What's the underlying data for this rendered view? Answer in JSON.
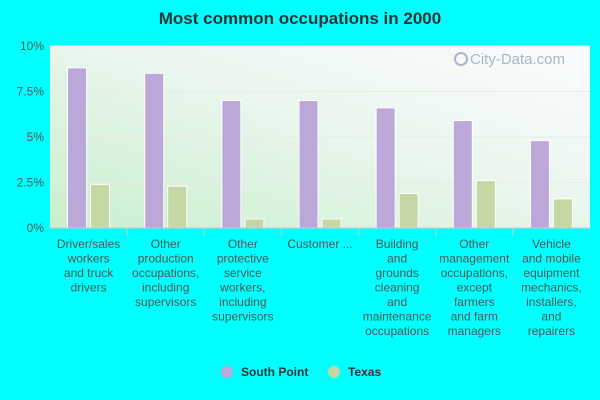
{
  "chart_data": {
    "type": "bar",
    "title": "Most common occupations in 2000",
    "xlabel": "",
    "ylabel": "",
    "ylim": [
      0,
      10
    ],
    "y_ticks": [
      "0%",
      "2.5%",
      "5%",
      "7.5%",
      "10%"
    ],
    "y_tick_values": [
      0,
      2.5,
      5,
      7.5,
      10
    ],
    "categories": [
      [
        "Driver/sales",
        "workers",
        "and truck",
        "drivers"
      ],
      [
        "Other",
        "production",
        "occupations,",
        "including",
        "supervisors"
      ],
      [
        "Other",
        "protective",
        "service",
        "workers,",
        "including",
        "supervisors"
      ],
      [
        "Customer ..."
      ],
      [
        "Building",
        "and",
        "grounds",
        "cleaning",
        "and",
        "maintenance",
        "occupations"
      ],
      [
        "Other",
        "management",
        "occupations,",
        "except",
        "farmers",
        "and farm",
        "managers"
      ],
      [
        "Vehicle",
        "and mobile",
        "equipment",
        "mechanics,",
        "installers,",
        "and",
        "repairers"
      ]
    ],
    "series": [
      {
        "name": "South Point",
        "color": "#bca7d9",
        "values": [
          8.8,
          8.5,
          7.0,
          7.0,
          6.6,
          5.9,
          4.8
        ]
      },
      {
        "name": "Texas",
        "color": "#c5d7a5",
        "values": [
          2.4,
          2.3,
          0.5,
          0.5,
          1.9,
          2.6,
          1.6
        ]
      }
    ],
    "legend_position": "bottom",
    "grid": true,
    "watermark": "City-Data.com"
  }
}
